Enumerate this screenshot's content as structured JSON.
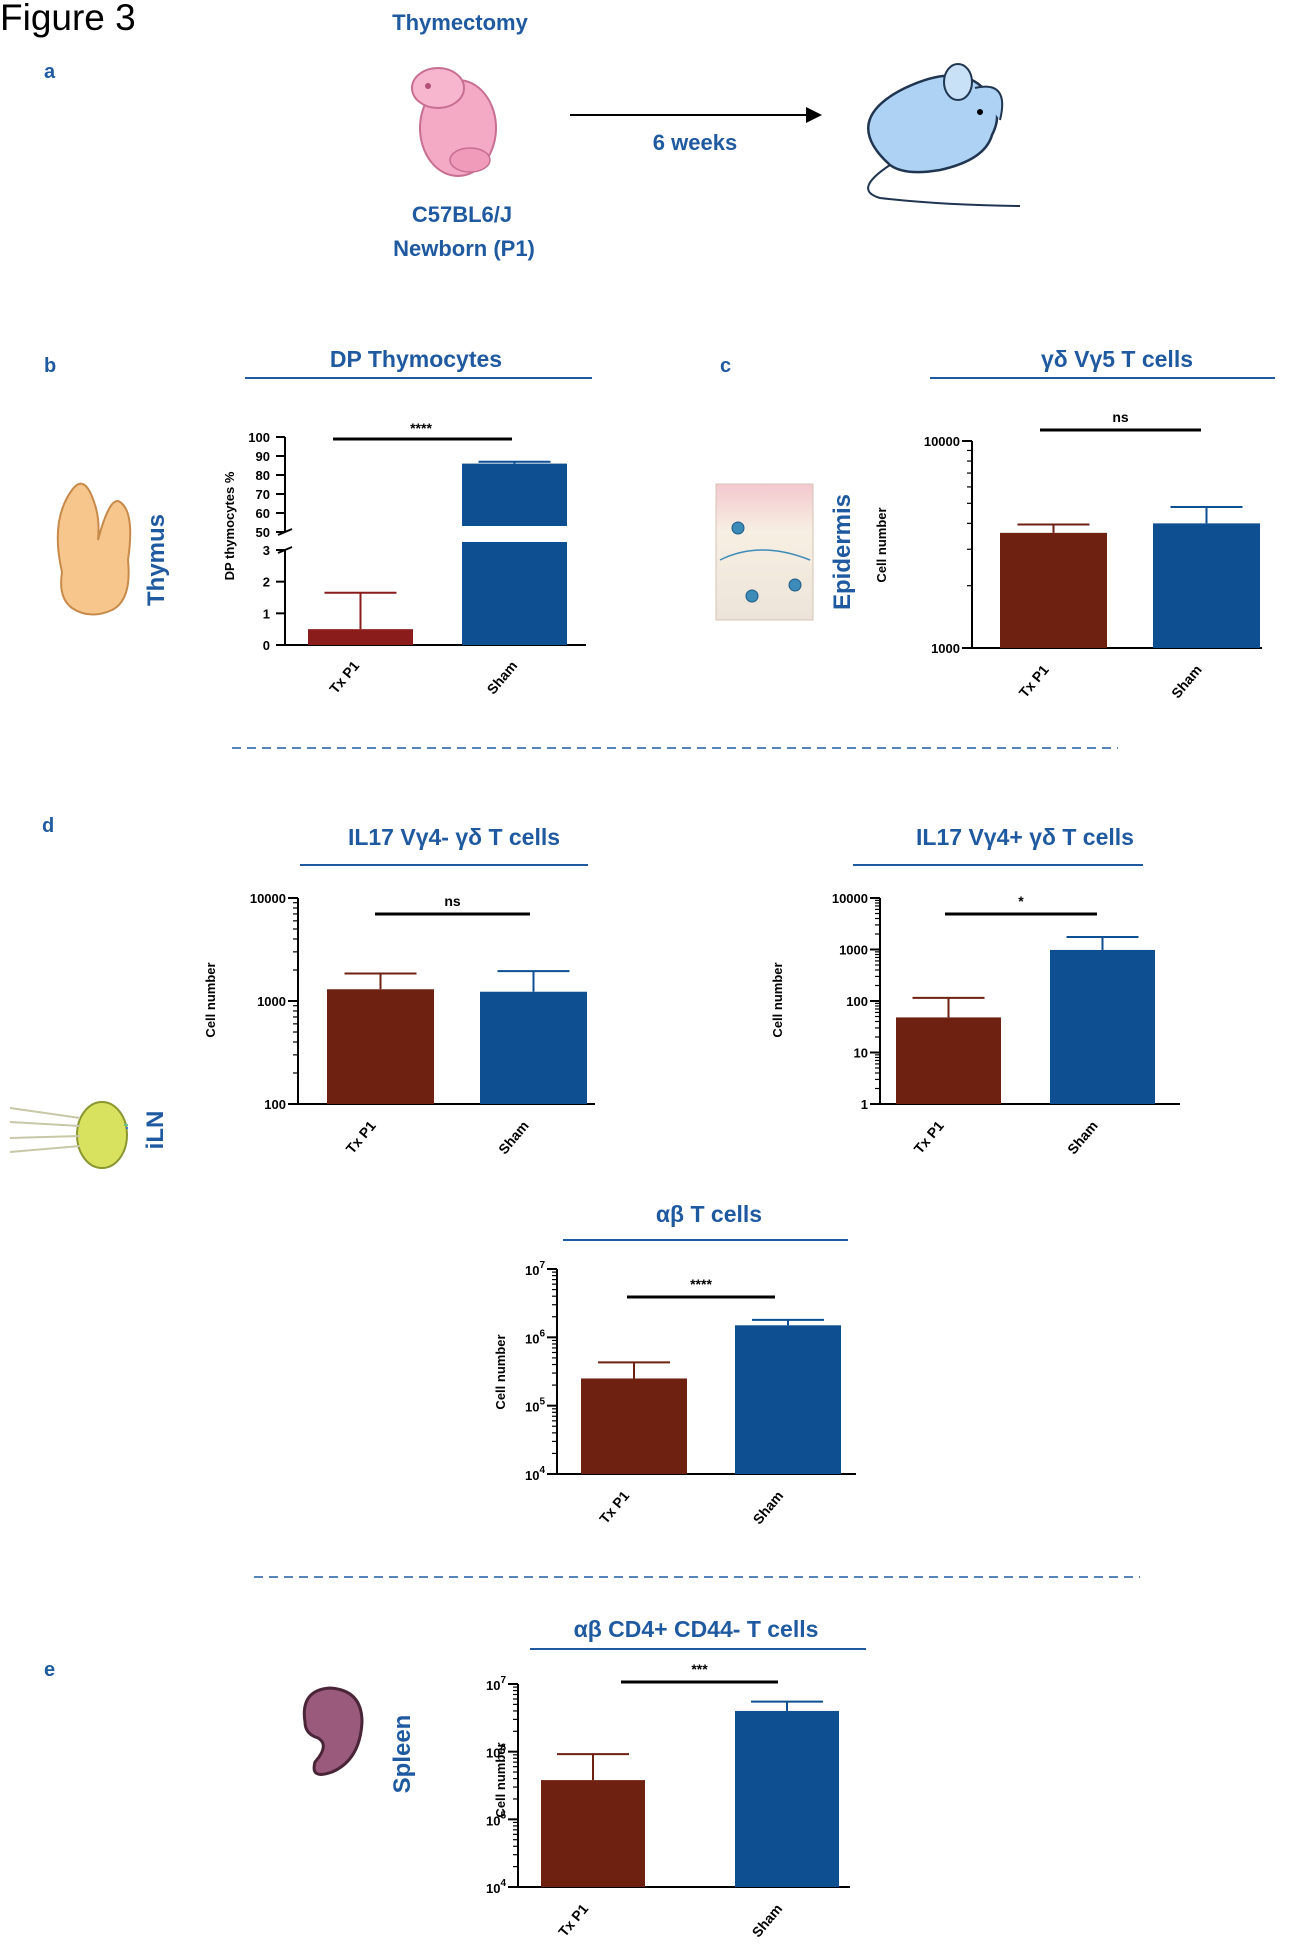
{
  "figure_title": "Figure 3",
  "panel_letters": [
    "a",
    "b",
    "c",
    "d",
    "e"
  ],
  "panel_a": {
    "procedure": "Thymectomy",
    "duration": "6 weeks",
    "strain": "C57BL6/J",
    "age": "Newborn (P1)"
  },
  "organs": {
    "thymus": "Thymus",
    "epidermis": "Epidermis",
    "iln": "iLN",
    "spleen": "Spleen"
  },
  "colors": {
    "tx": "#6e2110",
    "tx_b": "#8a1c1c",
    "sham": "#0d4f91",
    "accent": "#1f5aa0"
  },
  "chart_data": [
    {
      "id": "b",
      "type": "bar",
      "title": "DP Thymocytes",
      "ylabel": "DP thymocytes %",
      "categories": [
        "Tx P1",
        "Sham"
      ],
      "values": [
        0.5,
        86
      ],
      "errors": [
        1.15,
        1
      ],
      "scale": "broken-linear",
      "ylim": [
        0,
        100
      ],
      "axis_break": [
        3,
        50
      ],
      "yticks_low": [
        "0",
        "1",
        "2",
        "3"
      ],
      "yticks_high": [
        "50",
        "60",
        "70",
        "80",
        "90",
        "100"
      ],
      "significance": "****",
      "grid": false
    },
    {
      "id": "c",
      "type": "bar",
      "title": "γδ Vγ5  T cells",
      "ylabel": "Cell number",
      "categories": [
        "Tx P1",
        "Sham"
      ],
      "values": [
        3600,
        4000
      ],
      "errors_upper": [
        3950,
        4800
      ],
      "scale": "log",
      "ylim": [
        1000,
        10000
      ],
      "yticks": [
        "1000",
        "10000"
      ],
      "significance": "ns",
      "grid": false
    },
    {
      "id": "d1",
      "type": "bar",
      "title": "IL17 Vγ4- γδ T cells",
      "ylabel": "Cell number",
      "categories": [
        "Tx P1",
        "Sham"
      ],
      "values": [
        1300,
        1230
      ],
      "errors_upper": [
        1850,
        1950
      ],
      "scale": "log",
      "ylim": [
        100,
        10000
      ],
      "yticks": [
        "100",
        "1000",
        "10000"
      ],
      "significance": "ns",
      "grid": false
    },
    {
      "id": "d2",
      "type": "bar",
      "title": "IL17 Vγ4+ γδ T cells",
      "ylabel": "Cell number",
      "categories": [
        "Tx P1",
        "Sham"
      ],
      "values": [
        48,
        980
      ],
      "errors_upper": [
        115,
        1750
      ],
      "scale": "log",
      "ylim": [
        1,
        10000
      ],
      "yticks": [
        "1",
        "10",
        "100",
        "1000",
        "10000"
      ],
      "significance": "*",
      "grid": false
    },
    {
      "id": "d3",
      "type": "bar",
      "title": "αβ T cells",
      "ylabel": "Cell number",
      "categories": [
        "Tx P1",
        "Sham"
      ],
      "values": [
        250000,
        1500000
      ],
      "errors_upper": [
        430000,
        1800000
      ],
      "scale": "log",
      "ylim": [
        10000,
        10000000
      ],
      "yticks": [
        "4",
        "5",
        "6",
        "7"
      ],
      "significance": "****",
      "grid": false
    },
    {
      "id": "e",
      "type": "bar",
      "title": "αβ CD4+ CD44- T cells",
      "ylabel": "Cell number",
      "categories": [
        "Tx P1",
        "Sham"
      ],
      "values": [
        380000,
        4000000
      ],
      "errors_upper": [
        920000,
        5500000
      ],
      "scale": "log",
      "ylim": [
        10000,
        10000000
      ],
      "yticks": [
        "4",
        "5",
        "6",
        "7"
      ],
      "significance": "***",
      "grid": false
    }
  ]
}
